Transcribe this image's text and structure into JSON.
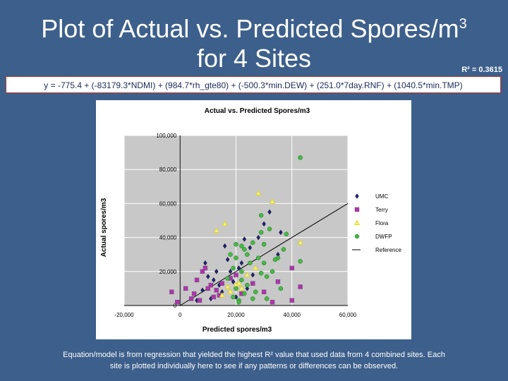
{
  "slide": {
    "title_line1": "Plot of Actual vs. Predicted Spores/m",
    "title_sup": "3",
    "title_line2": "for 4 Sites",
    "r_squared": "R² = 0.3615",
    "equation": "y = -775.4 + (-83179.3*NDMI) + (984.7*rh_gte80) + (-500.3*min.DEW) + (251.0*7day.RNF) + (1040.5*min.TMP)",
    "footer_line1": "Equation/model is from regression that yielded the highest R² value that used data from 4 combined sites.  Each",
    "footer_line2": "site is plotted individually here to see if any patterns or differences can be observed.",
    "background_color": "#3d5f8b"
  },
  "chart_data": {
    "type": "scatter",
    "title": "Actual vs. Predicted  Spores/m3",
    "xlabel": "Predicted spores/m3",
    "ylabel": "Actual spores/m3",
    "xlim": [
      -20000,
      60000
    ],
    "ylim": [
      0,
      100000
    ],
    "x_ticks": [
      "-20,000",
      "0",
      "20,000",
      "40,000",
      "60,000"
    ],
    "y_ticks": [
      "0",
      "20,000",
      "40,000",
      "60,000",
      "80,000",
      "100,000"
    ],
    "grid": true,
    "legend_position": "right",
    "series": [
      {
        "name": "UMC",
        "marker": "diamond",
        "color": "#1f1f7a",
        "points": [
          [
            9000,
            25000
          ],
          [
            12000,
            15000
          ],
          [
            15000,
            8000
          ],
          [
            16000,
            35000
          ],
          [
            18000,
            20000
          ],
          [
            22000,
            25000
          ],
          [
            25000,
            34000
          ],
          [
            28000,
            40000
          ],
          [
            32000,
            55000
          ],
          [
            35000,
            30000
          ],
          [
            8000,
            9000
          ],
          [
            10000,
            17000
          ],
          [
            14000,
            12000
          ],
          [
            20000,
            5000
          ],
          [
            24000,
            10000
          ],
          [
            26000,
            18000
          ],
          [
            13000,
            20000
          ],
          [
            17000,
            27000
          ],
          [
            6000,
            3000
          ],
          [
            11000,
            4000
          ],
          [
            19000,
            14000
          ],
          [
            23000,
            39000
          ],
          [
            30000,
            48000
          ],
          [
            36000,
            43000
          ],
          [
            21000,
            22000
          ]
        ]
      },
      {
        "name": "Terry",
        "marker": "square",
        "color": "#b033b0",
        "points": [
          [
            -3000,
            8000
          ],
          [
            -1000,
            2000
          ],
          [
            2000,
            10000
          ],
          [
            4000,
            4000
          ],
          [
            6000,
            15000
          ],
          [
            8000,
            20000
          ],
          [
            10000,
            10000
          ],
          [
            12000,
            5000
          ],
          [
            15000,
            13000
          ],
          [
            18000,
            16000
          ],
          [
            22000,
            7000
          ],
          [
            26000,
            13000
          ],
          [
            30000,
            8000
          ],
          [
            35000,
            14000
          ],
          [
            40000,
            3000
          ],
          [
            40000,
            22000
          ],
          [
            43000,
            11000
          ],
          [
            11000,
            12000
          ],
          [
            9000,
            22000
          ],
          [
            5000,
            7000
          ],
          [
            14000,
            6000
          ],
          [
            20000,
            18000
          ],
          [
            33000,
            2000
          ],
          [
            13000,
            9000
          ],
          [
            7000,
            3000
          ]
        ]
      },
      {
        "name": "Flora",
        "marker": "triangle",
        "color": "#e6d800",
        "points": [
          [
            28000,
            66000
          ],
          [
            16000,
            48000
          ],
          [
            33000,
            61000
          ],
          [
            13000,
            44000
          ],
          [
            43000,
            37000
          ],
          [
            20000,
            12000
          ],
          [
            22000,
            10000
          ],
          [
            18000,
            8000
          ],
          [
            27000,
            22000
          ],
          [
            24000,
            18000
          ],
          [
            15000,
            6000
          ],
          [
            21000,
            13000
          ],
          [
            17000,
            11000
          ]
        ]
      },
      {
        "name": "DWFP",
        "marker": "circle",
        "color": "#44bb44",
        "points": [
          [
            43000,
            87000
          ],
          [
            29000,
            53000
          ],
          [
            43000,
            26000
          ],
          [
            32000,
            45000
          ],
          [
            29000,
            43000
          ],
          [
            30000,
            36000
          ],
          [
            22000,
            15000
          ],
          [
            20000,
            10000
          ],
          [
            19000,
            5000
          ],
          [
            21000,
            3000
          ],
          [
            23000,
            7000
          ],
          [
            25000,
            25000
          ],
          [
            28000,
            28000
          ],
          [
            31000,
            17000
          ],
          [
            35000,
            28000
          ],
          [
            37000,
            33000
          ],
          [
            20000,
            28000
          ],
          [
            19000,
            22000
          ],
          [
            24000,
            30000
          ],
          [
            26000,
            37000
          ],
          [
            30000,
            25000
          ],
          [
            21000,
            2000
          ],
          [
            22000,
            20000
          ],
          [
            17000,
            16000
          ],
          [
            24000,
            12000
          ],
          [
            27000,
            8000
          ],
          [
            33000,
            20000
          ],
          [
            36000,
            10000
          ],
          [
            18000,
            30000
          ],
          [
            20000,
            36000
          ],
          [
            23000,
            33000
          ],
          [
            29000,
            19000
          ],
          [
            31000,
            4000
          ],
          [
            26000,
            4000
          ],
          [
            34000,
            27000
          ],
          [
            22000,
            35000
          ],
          [
            38000,
            42000
          ]
        ]
      },
      {
        "name": "Reference",
        "marker": "line",
        "color": "#000000",
        "points": [
          [
            0,
            0
          ],
          [
            60000,
            60000
          ]
        ]
      }
    ]
  }
}
